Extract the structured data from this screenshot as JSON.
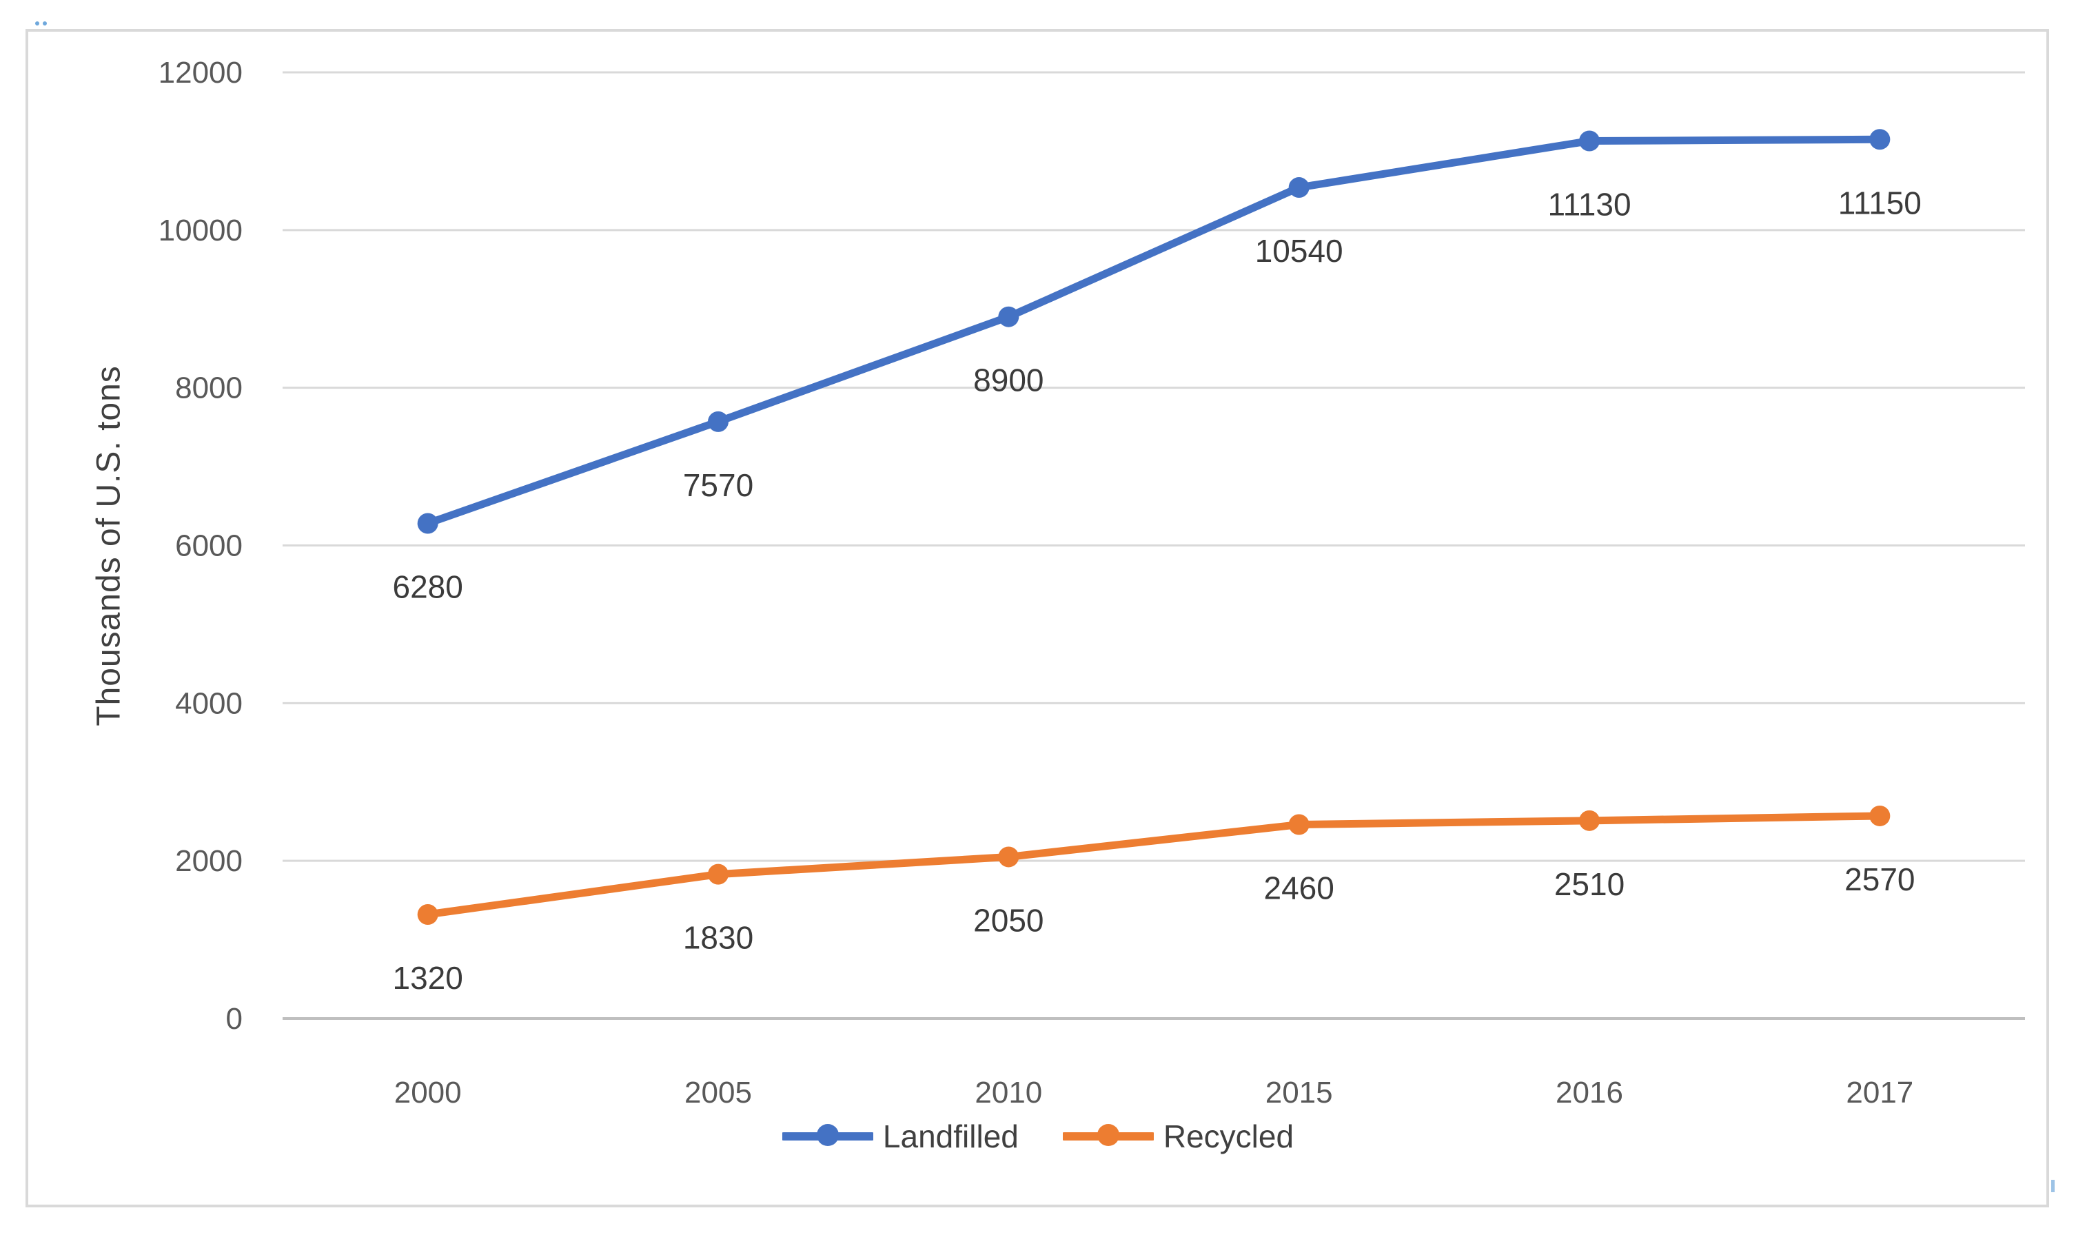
{
  "chart_data": {
    "type": "line",
    "categories": [
      "2000",
      "2005",
      "2010",
      "2015",
      "2016",
      "2017"
    ],
    "series": [
      {
        "name": "Landfilled",
        "color": "#4472C4",
        "values": [
          6280,
          7570,
          8900,
          10540,
          11130,
          11150
        ],
        "data_labels": [
          "6280",
          "7570",
          "8900",
          "10540",
          "11130",
          "11150"
        ]
      },
      {
        "name": "Recycled",
        "color": "#ED7D31",
        "values": [
          1320,
          1830,
          2050,
          2460,
          2510,
          2570
        ],
        "data_labels": [
          "1320",
          "1830",
          "2050",
          "2460",
          "2510",
          "2570"
        ]
      }
    ],
    "title": "",
    "xlabel": "",
    "ylabel": "Thousands of U.S. tons",
    "ylim": [
      0,
      12000
    ],
    "yticks": [
      0,
      2000,
      4000,
      6000,
      8000,
      10000,
      12000
    ],
    "ytick_labels": [
      "0",
      "2000",
      "4000",
      "6000",
      "8000",
      "10000",
      "12000"
    ],
    "grid": "horizontal",
    "legend_position": "bottom",
    "data_label_position": "below"
  },
  "colors": {
    "gridline": "#d9d9d9",
    "axis_line": "#bfbfbf",
    "tick_label": "#595959",
    "data_label": "#3b3b3b",
    "legend_text": "#404040",
    "frame_border": "#d9d9d9",
    "background": "#ffffff",
    "selection_artifact": "#6fa8dc"
  }
}
